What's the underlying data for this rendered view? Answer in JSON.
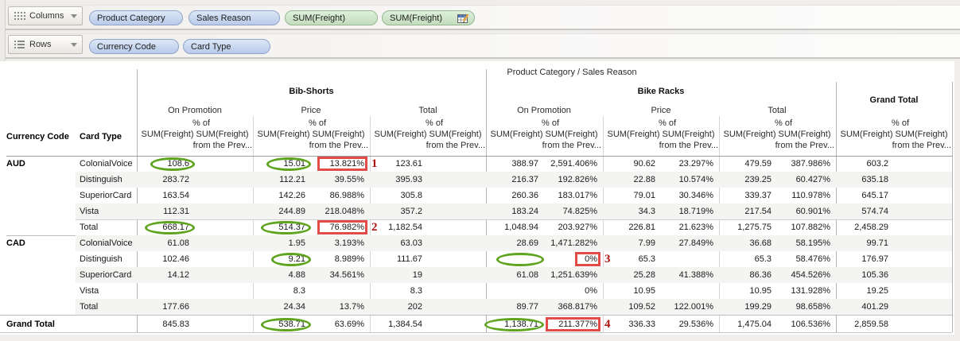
{
  "shelves": {
    "columns": {
      "label": "Columns",
      "pills": [
        {
          "label": "Product Category",
          "type": "dimension"
        },
        {
          "label": "Sales Reason",
          "type": "dimension"
        },
        {
          "label": "SUM(Freight)",
          "type": "measure"
        },
        {
          "label": "SUM(Freight)",
          "type": "measure",
          "has_table_calc_icon": true
        }
      ]
    },
    "rows": {
      "label": "Rows",
      "pills": [
        {
          "label": "Currency Code",
          "type": "dimension"
        },
        {
          "label": "Card Type",
          "type": "dimension"
        }
      ]
    }
  },
  "table": {
    "title": "Product Category / Sales Reason",
    "row_header_columns": [
      "Currency Code",
      "Card Type"
    ],
    "column_groups": [
      {
        "label": "Bib-Shorts",
        "subcolumns": [
          "On Promotion",
          "Price",
          "Total"
        ]
      },
      {
        "label": "Bike Racks",
        "subcolumns": [
          "On Promotion",
          "Price",
          "Total"
        ]
      },
      {
        "label": "Grand Total",
        "subcolumns": []
      }
    ],
    "measure_header": {
      "sum_label": "SUM(Freight)",
      "pct_lines": [
        "% of",
        "SUM(Freight)",
        "from the Prev..."
      ]
    },
    "rows": [
      {
        "currency": "AUD",
        "card_type": "ColonialVoice",
        "cells": [
          "108.6",
          "",
          "15.01",
          "13.821%",
          "123.61",
          "",
          "388.97",
          "2,591.406%",
          "90.62",
          "23.297%",
          "479.59",
          "387.986%",
          "603.2"
        ]
      },
      {
        "currency": "",
        "card_type": "Distinguish",
        "cells": [
          "283.72",
          "",
          "112.21",
          "39.55%",
          "395.93",
          "",
          "216.37",
          "192.826%",
          "22.88",
          "10.574%",
          "239.25",
          "60.427%",
          "635.18"
        ]
      },
      {
        "currency": "",
        "card_type": "SuperiorCard",
        "cells": [
          "163.54",
          "",
          "142.26",
          "86.988%",
          "305.8",
          "",
          "260.36",
          "183.017%",
          "79.01",
          "30.346%",
          "339.37",
          "110.978%",
          "645.17"
        ]
      },
      {
        "currency": "",
        "card_type": "Vista",
        "cells": [
          "112.31",
          "",
          "244.89",
          "218.048%",
          "357.2",
          "",
          "183.24",
          "74.825%",
          "34.3",
          "18.719%",
          "217.54",
          "60.901%",
          "574.74"
        ]
      },
      {
        "currency": "",
        "card_type": "Total",
        "cells": [
          "668.17",
          "",
          "514.37",
          "76.982%",
          "1,182.54",
          "",
          "1,048.94",
          "203.927%",
          "226.81",
          "21.623%",
          "1,275.75",
          "107.882%",
          "2,458.29"
        ]
      },
      {
        "currency": "CAD",
        "card_type": "ColonialVoice",
        "cells": [
          "61.08",
          "",
          "1.95",
          "3.193%",
          "63.03",
          "",
          "28.69",
          "1,471.282%",
          "7.99",
          "27.849%",
          "36.68",
          "58.195%",
          "99.71"
        ]
      },
      {
        "currency": "",
        "card_type": "Distinguish",
        "cells": [
          "102.46",
          "",
          "9.21",
          "8.989%",
          "111.67",
          "",
          "",
          "0%",
          "65.3",
          "",
          "65.3",
          "58.476%",
          "176.97"
        ]
      },
      {
        "currency": "",
        "card_type": "SuperiorCard",
        "cells": [
          "14.12",
          "",
          "4.88",
          "34.561%",
          "19",
          "",
          "61.08",
          "1,251.639%",
          "25.28",
          "41.388%",
          "86.36",
          "454.526%",
          "105.36"
        ]
      },
      {
        "currency": "",
        "card_type": "Vista",
        "cells": [
          "",
          "",
          "8.3",
          "",
          "8.3",
          "",
          "",
          "0%",
          "10.95",
          "",
          "10.95",
          "131.928%",
          "19.25"
        ]
      },
      {
        "currency": "",
        "card_type": "Total",
        "cells": [
          "177.66",
          "",
          "24.34",
          "13.7%",
          "202",
          "",
          "89.77",
          "368.817%",
          "109.52",
          "122.001%",
          "199.29",
          "98.658%",
          "401.29"
        ]
      },
      {
        "currency": "Grand Total",
        "card_type": "",
        "cells": [
          "845.83",
          "",
          "538.71",
          "63.69%",
          "1,384.54",
          "",
          "1,138.71",
          "211.377%",
          "336.33",
          "29.536%",
          "1,475.04",
          "106.536%",
          "2,859.58"
        ]
      }
    ]
  },
  "annotations": {
    "green_ellipses": [
      {
        "row": 0,
        "cell": 0
      },
      {
        "row": 0,
        "cell": 2
      },
      {
        "row": 4,
        "cell": 0
      },
      {
        "row": 4,
        "cell": 2
      },
      {
        "row": 6,
        "cell": 2
      },
      {
        "row": 6,
        "cell": 6
      },
      {
        "row": 10,
        "cell": 2
      },
      {
        "row": 10,
        "cell": 6
      }
    ],
    "red_boxes": [
      {
        "row": 0,
        "cell": 3,
        "label": "1"
      },
      {
        "row": 4,
        "cell": 3,
        "label": "2"
      },
      {
        "row": 6,
        "cell": 7,
        "label": "3"
      },
      {
        "row": 10,
        "cell": 7,
        "label": "4"
      }
    ]
  },
  "colors": {
    "green_annotation": "#5fa41e",
    "red_annotation": "#e14b48",
    "red_numeral": "#b01212",
    "dimension_pill": "#b9cae9",
    "measure_pill": "#c3dcbd",
    "band": "#f4f4f3"
  }
}
